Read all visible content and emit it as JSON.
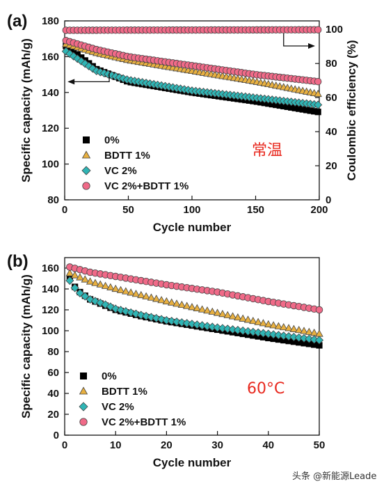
{
  "chart_data": [
    {
      "type": "scatter",
      "panel_label": "(a)",
      "xlabel": "Cycle number",
      "ylabel": "Specific capacity (mAh/g)",
      "y2label": "Coulombic efficiency (%)",
      "xlim": [
        0,
        200
      ],
      "ylim": [
        80,
        180
      ],
      "y2lim": [
        0,
        105
      ],
      "xticks": [
        "0",
        "50",
        "100",
        "150",
        "200"
      ],
      "yticks": [
        "80",
        "100",
        "120",
        "140",
        "160",
        "180"
      ],
      "y2ticks": [
        "0",
        "20",
        "40",
        "60",
        "80",
        "100"
      ],
      "annotation": "常温",
      "legend_position": "lower-left",
      "series": [
        {
          "name": "0%",
          "marker": "square",
          "color": "#000000",
          "x": [
            1,
            25,
            50,
            100,
            150,
            200
          ],
          "y": [
            166,
            153,
            146,
            140,
            135,
            129
          ]
        },
        {
          "name": "BDTT 1%",
          "marker": "triangle",
          "color": "#e8b040",
          "x": [
            1,
            25,
            50,
            100,
            150,
            200
          ],
          "y": [
            167,
            162,
            158,
            152,
            146,
            139
          ]
        },
        {
          "name": "VC 2%",
          "marker": "diamond",
          "color": "#2fb5b5",
          "x": [
            1,
            25,
            50,
            100,
            150,
            200
          ],
          "y": [
            163,
            152,
            147,
            141,
            137,
            133
          ]
        },
        {
          "name": "VC 2%+BDTT 1%",
          "marker": "circle",
          "color": "#f06a88",
          "x": [
            1,
            25,
            50,
            100,
            150,
            200
          ],
          "y": [
            169,
            164,
            160,
            155,
            150,
            146
          ]
        },
        {
          "name": "Coulombic efficiency",
          "axis": "right",
          "marker": "circle",
          "color": "#f06a88",
          "x": [
            1,
            200
          ],
          "y": [
            99.5,
            99.8
          ]
        }
      ]
    },
    {
      "type": "scatter",
      "panel_label": "(b)",
      "xlabel": "Cycle number",
      "ylabel": "Specific capacity (mAh/g)",
      "xlim": [
        0,
        50
      ],
      "ylim": [
        0,
        170
      ],
      "xticks": [
        "0",
        "10",
        "20",
        "30",
        "40",
        "50"
      ],
      "yticks": [
        "0",
        "20",
        "40",
        "60",
        "80",
        "100",
        "120",
        "140",
        "160"
      ],
      "annotation": "60°C",
      "legend_position": "lower-left",
      "series": [
        {
          "name": "0%",
          "marker": "square",
          "color": "#000000",
          "x": [
            1,
            2,
            3,
            5,
            8,
            10,
            15,
            20,
            30,
            40,
            50
          ],
          "y": [
            150,
            142,
            137,
            130,
            124,
            120,
            114,
            109,
            101,
            93,
            86
          ]
        },
        {
          "name": "BDTT 1%",
          "marker": "triangle",
          "color": "#e8b040",
          "x": [
            1,
            5,
            10,
            20,
            30,
            40,
            50
          ],
          "y": [
            155,
            147,
            140,
            128,
            117,
            106,
            97
          ]
        },
        {
          "name": "VC 2%",
          "marker": "diamond",
          "color": "#2fb5b5",
          "x": [
            1,
            2,
            3,
            5,
            8,
            10,
            15,
            20,
            30,
            40,
            50
          ],
          "y": [
            148,
            141,
            136,
            130,
            125,
            121,
            115,
            110,
            103,
            97,
            91
          ]
        },
        {
          "name": "VC 2%+BDTT 1%",
          "marker": "circle",
          "color": "#f06a88",
          "x": [
            1,
            5,
            10,
            20,
            30,
            40,
            50
          ],
          "y": [
            161,
            156,
            152,
            144,
            137,
            128,
            120
          ]
        }
      ]
    }
  ],
  "watermark": "头条 @新能源Leader"
}
